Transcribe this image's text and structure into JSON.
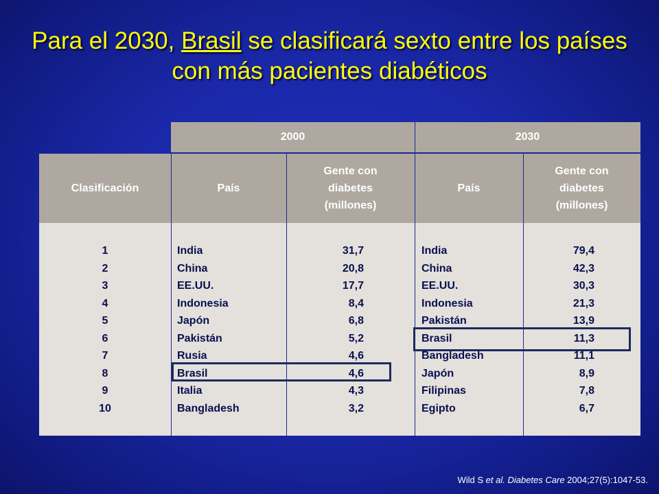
{
  "title": {
    "part1": "Para el 2030, ",
    "highlight": "Brasil",
    "part2": " se clasificará sexto entre los países con más pacientes diabéticos"
  },
  "table": {
    "years": [
      "2000",
      "2030"
    ],
    "headers": {
      "rank": "Clasificación",
      "country_2000": "País",
      "people_2000": "Gente con diabetes (millones)",
      "country_2030": "País",
      "people_2030": "Gente con diabetes (millones)"
    },
    "ranks": [
      "1",
      "2",
      "3",
      "4",
      "5",
      "6",
      "7",
      "8",
      "9",
      "10"
    ],
    "countries_2000": [
      "India",
      "China",
      "EE.UU.",
      "Indonesia",
      "Japón",
      "Pakistán",
      "Rusia",
      "Brasil",
      "Italia",
      "Bangladesh"
    ],
    "values_2000": [
      "31,7",
      "20,8",
      "17,7",
      "8,4",
      "6,8",
      "5,2",
      "4,6",
      "4,6",
      "4,3",
      "3,2"
    ],
    "countries_2030": [
      "India",
      "China",
      "EE.UU.",
      "Indonesia",
      "Pakistán",
      "Brasil",
      "Bangladesh",
      "Japón",
      "Filipinas",
      "Egipto"
    ],
    "values_2030": [
      "79,4",
      "42,3",
      "30,3",
      "21,3",
      "13,9",
      "11,3",
      "11,1",
      "8,9",
      "7,8",
      "6,7"
    ],
    "highlighted": [
      "2000 rank 8: Brasil",
      "2030 rank 6: Brasil"
    ]
  },
  "source": {
    "authors": "Wild S ",
    "etal": "et al.",
    "journal": "Diabetes Care",
    "citation": " 2004;27(5):1047-53."
  },
  "colors": {
    "background": "#1a28a8",
    "title": "#ffff00",
    "header_fill": "#aea8a0",
    "body_fill": "#e4e0dc",
    "highlight_box": "#1c2a5c"
  }
}
